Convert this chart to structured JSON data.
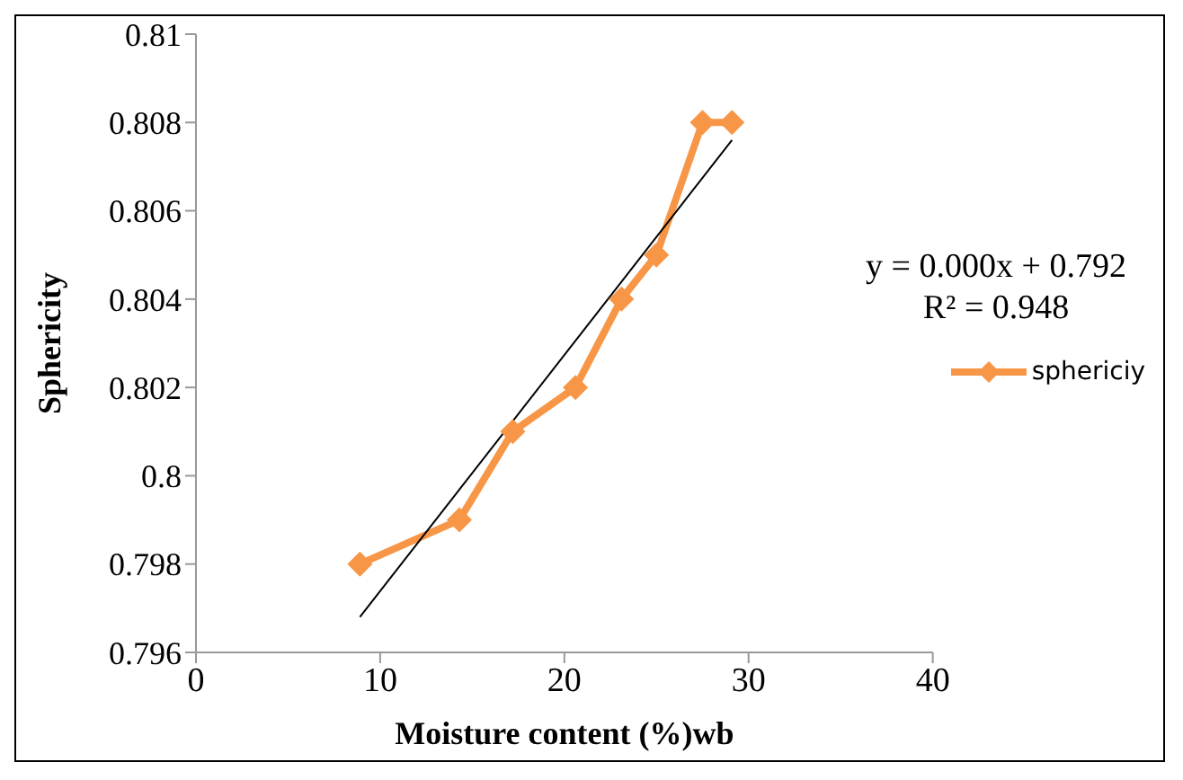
{
  "chart_data": {
    "type": "line",
    "xlabel": "Moisture content (%)wb",
    "ylabel": "Sphericity",
    "xlim": [
      0,
      40
    ],
    "xticks": [
      0,
      10,
      20,
      30,
      40
    ],
    "ylim": [
      0.796,
      0.81
    ],
    "yticks": [
      0.796,
      0.798,
      0.8,
      0.802,
      0.804,
      0.806,
      0.808,
      0.81
    ],
    "series": [
      {
        "name": "sphericiy",
        "color": "#f79646",
        "x": [
          8.9,
          14.3,
          17.2,
          20.6,
          23.1,
          25.0,
          27.5,
          29.1
        ],
        "values": [
          0.798,
          0.799,
          0.801,
          0.802,
          0.804,
          0.805,
          0.808,
          0.808
        ],
        "marker": "diamond"
      },
      {
        "type": "line",
        "color": "#000000",
        "x": [
          8.9,
          29.1
        ],
        "values": [
          0.7968,
          0.8076
        ],
        "marker": "none"
      }
    ],
    "annotations": [
      "y = 0.000x + 0.792",
      "R² = 0.948"
    ],
    "legend": "right",
    "grid": false
  }
}
